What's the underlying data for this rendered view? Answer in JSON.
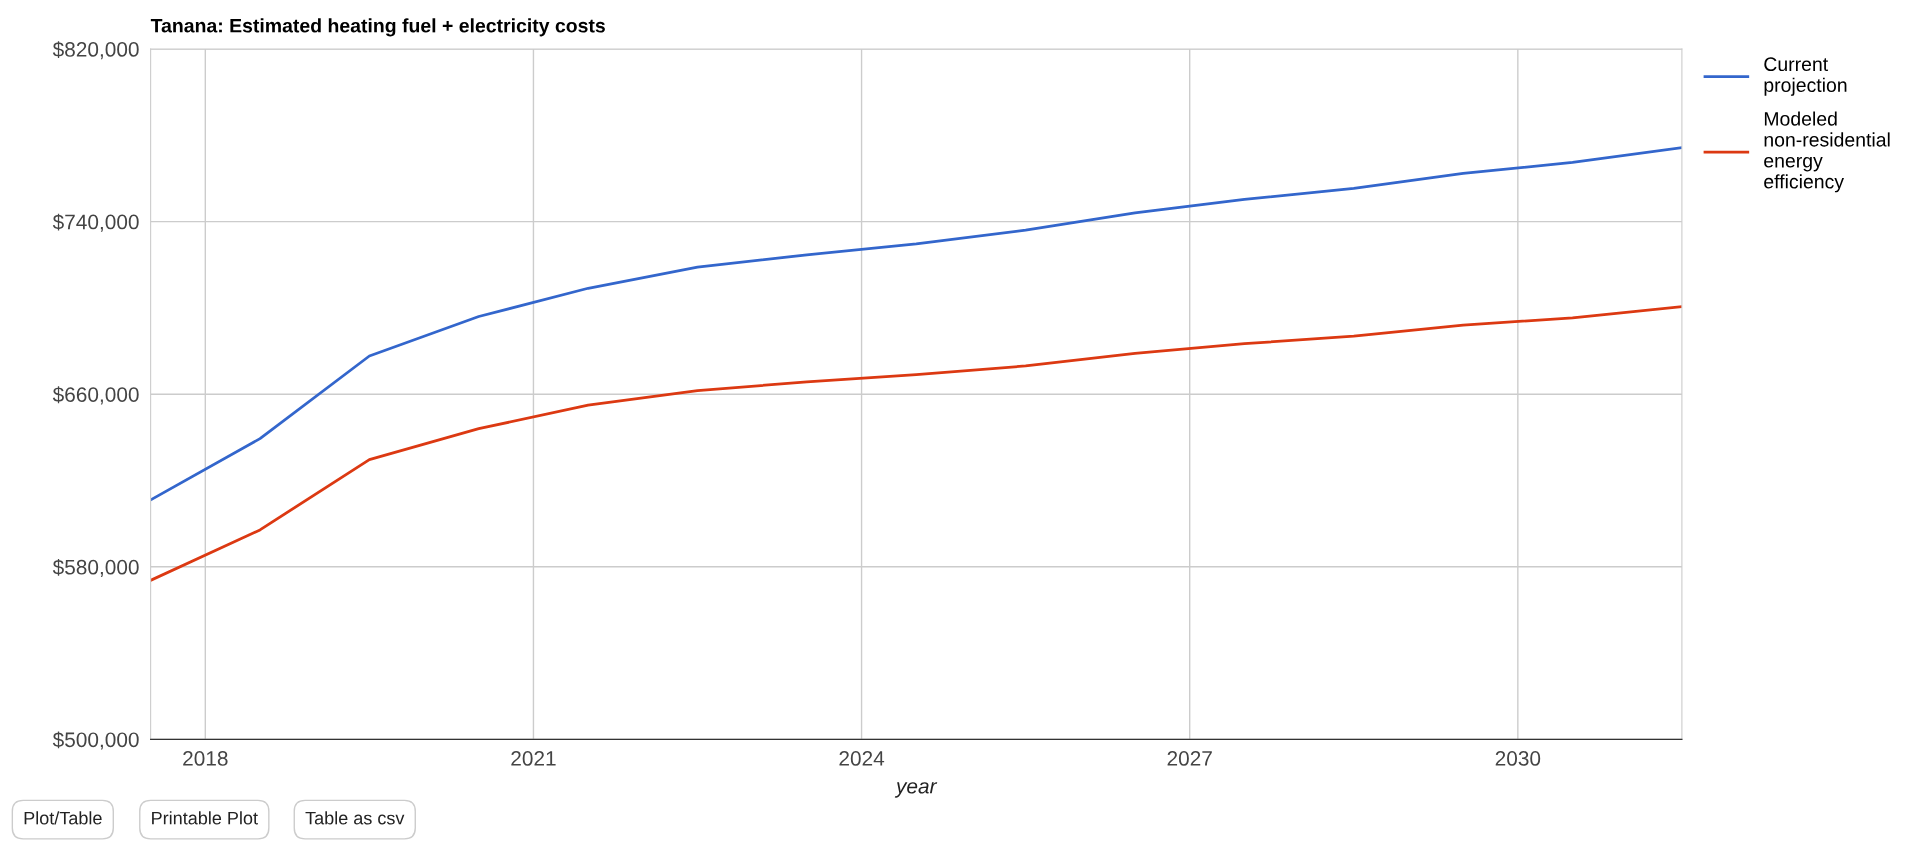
{
  "chart_data": {
    "type": "line",
    "title": "Tanana: Estimated heating fuel + electricity costs",
    "xlabel": "year",
    "x": [
      2017.5,
      2018.5,
      2019.5,
      2020.5,
      2021.5,
      2022.5,
      2023.5,
      2024.5,
      2025.5,
      2026.5,
      2027.5,
      2028.5,
      2029.5,
      2030.5,
      2031.5
    ],
    "series": [
      {
        "name": "Current projection",
        "color": "#3366cc",
        "values": [
          611000,
          639400,
          677700,
          696000,
          709100,
          718900,
          724600,
          729700,
          736000,
          744000,
          750300,
          755400,
          762300,
          767400,
          774300
        ]
      },
      {
        "name": "Modeled non-residential energy efficiency",
        "color": "#dc3912",
        "values": [
          573700,
          597100,
          629700,
          644000,
          654900,
          661700,
          665700,
          669100,
          673100,
          678900,
          683400,
          686900,
          692000,
          695400,
          700600
        ]
      }
    ],
    "xlim": [
      2017.5,
      2031.5
    ],
    "xticks": [
      2018,
      2021,
      2024,
      2027,
      2030
    ],
    "ylim": [
      500000,
      820000
    ],
    "yticks": [
      {
        "value": 500000,
        "label": "$500,000"
      },
      {
        "value": 580000,
        "label": "$580,000"
      },
      {
        "value": 660000,
        "label": "$660,000"
      },
      {
        "value": 740000,
        "label": "$740,000"
      },
      {
        "value": 820000,
        "label": "$820,000"
      }
    ],
    "grid": true,
    "legend": "top right",
    "marker": "none",
    "line_style": "solid",
    "annotations": [
      "Plot/Table",
      "Printable Plot",
      "Table as csv"
    ]
  }
}
